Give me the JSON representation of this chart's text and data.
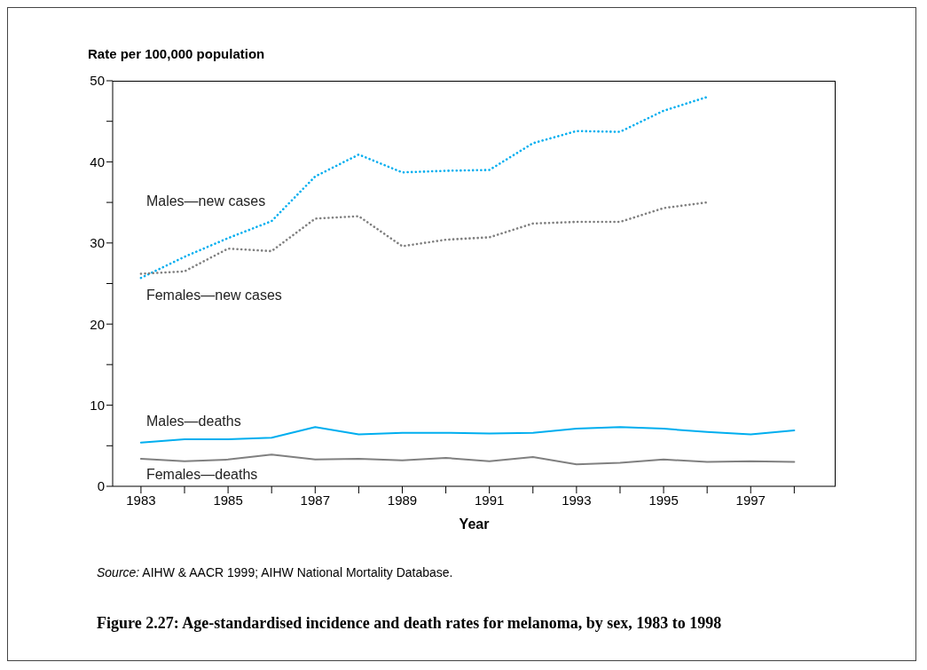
{
  "chart_data": {
    "type": "line",
    "title": "Figure 2.27: Age-standardised incidence and death rates for melanoma, by sex, 1983 to 1998",
    "ylabel": "Rate per 100,000 population",
    "xlabel": "Year",
    "annotations": [
      "Source: AIHW & AACR 1999; AIHW National Mortality Database."
    ],
    "x": [
      1983,
      1984,
      1985,
      1986,
      1987,
      1988,
      1989,
      1990,
      1991,
      1992,
      1993,
      1994,
      1995,
      1996,
      1997,
      1998
    ],
    "series": [
      {
        "name": "Males—new cases",
        "color": "#00aeef",
        "line_style": "dotted",
        "values": [
          25.7,
          28.3,
          30.6,
          32.7,
          38.2,
          40.9,
          38.7,
          38.9,
          39.0,
          42.3,
          43.8,
          43.7,
          46.3,
          48.0,
          null,
          null
        ]
      },
      {
        "name": "Females—new cases",
        "color": "#808080",
        "line_style": "dotted",
        "values": [
          26.2,
          26.5,
          29.3,
          29.0,
          33.0,
          33.3,
          29.6,
          30.4,
          30.7,
          32.4,
          32.6,
          32.6,
          34.3,
          35.0,
          null,
          null
        ]
      },
      {
        "name": "Males—deaths",
        "color": "#00aeef",
        "line_style": "solid",
        "values": [
          5.4,
          5.8,
          5.8,
          6.0,
          7.3,
          6.4,
          6.6,
          6.6,
          6.5,
          6.6,
          7.1,
          7.3,
          7.1,
          6.7,
          6.4,
          6.9
        ]
      },
      {
        "name": "Females—deaths",
        "color": "#808080",
        "line_style": "solid",
        "values": [
          3.4,
          3.1,
          3.3,
          3.9,
          3.3,
          3.4,
          3.2,
          3.5,
          3.1,
          3.6,
          2.7,
          2.9,
          3.3,
          3.0,
          3.1,
          3.0
        ]
      }
    ],
    "xlim": [
      1982.35,
      1998.95
    ],
    "xticks": [
      1983,
      {
        "value": 1984,
        "label": null
      },
      1985,
      {
        "value": 1986,
        "label": null
      },
      1987,
      {
        "value": 1988,
        "label": null
      },
      1989,
      {
        "value": 1990,
        "label": null
      },
      1991,
      {
        "value": 1992,
        "label": null
      },
      1993,
      {
        "value": 1994,
        "label": null
      },
      1995,
      {
        "value": 1996,
        "label": null
      },
      1997,
      {
        "value": 1998,
        "label": null
      }
    ],
    "ylim": [
      0,
      50
    ],
    "yticks": [
      0,
      {
        "value": 5,
        "label": null
      },
      10,
      {
        "value": 15,
        "label": null
      },
      20,
      {
        "value": 25,
        "label": null
      },
      30,
      {
        "value": 35,
        "label": null
      },
      40,
      {
        "value": 45,
        "label": null
      },
      50
    ],
    "grid": false,
    "legend": false,
    "marker": "none"
  }
}
